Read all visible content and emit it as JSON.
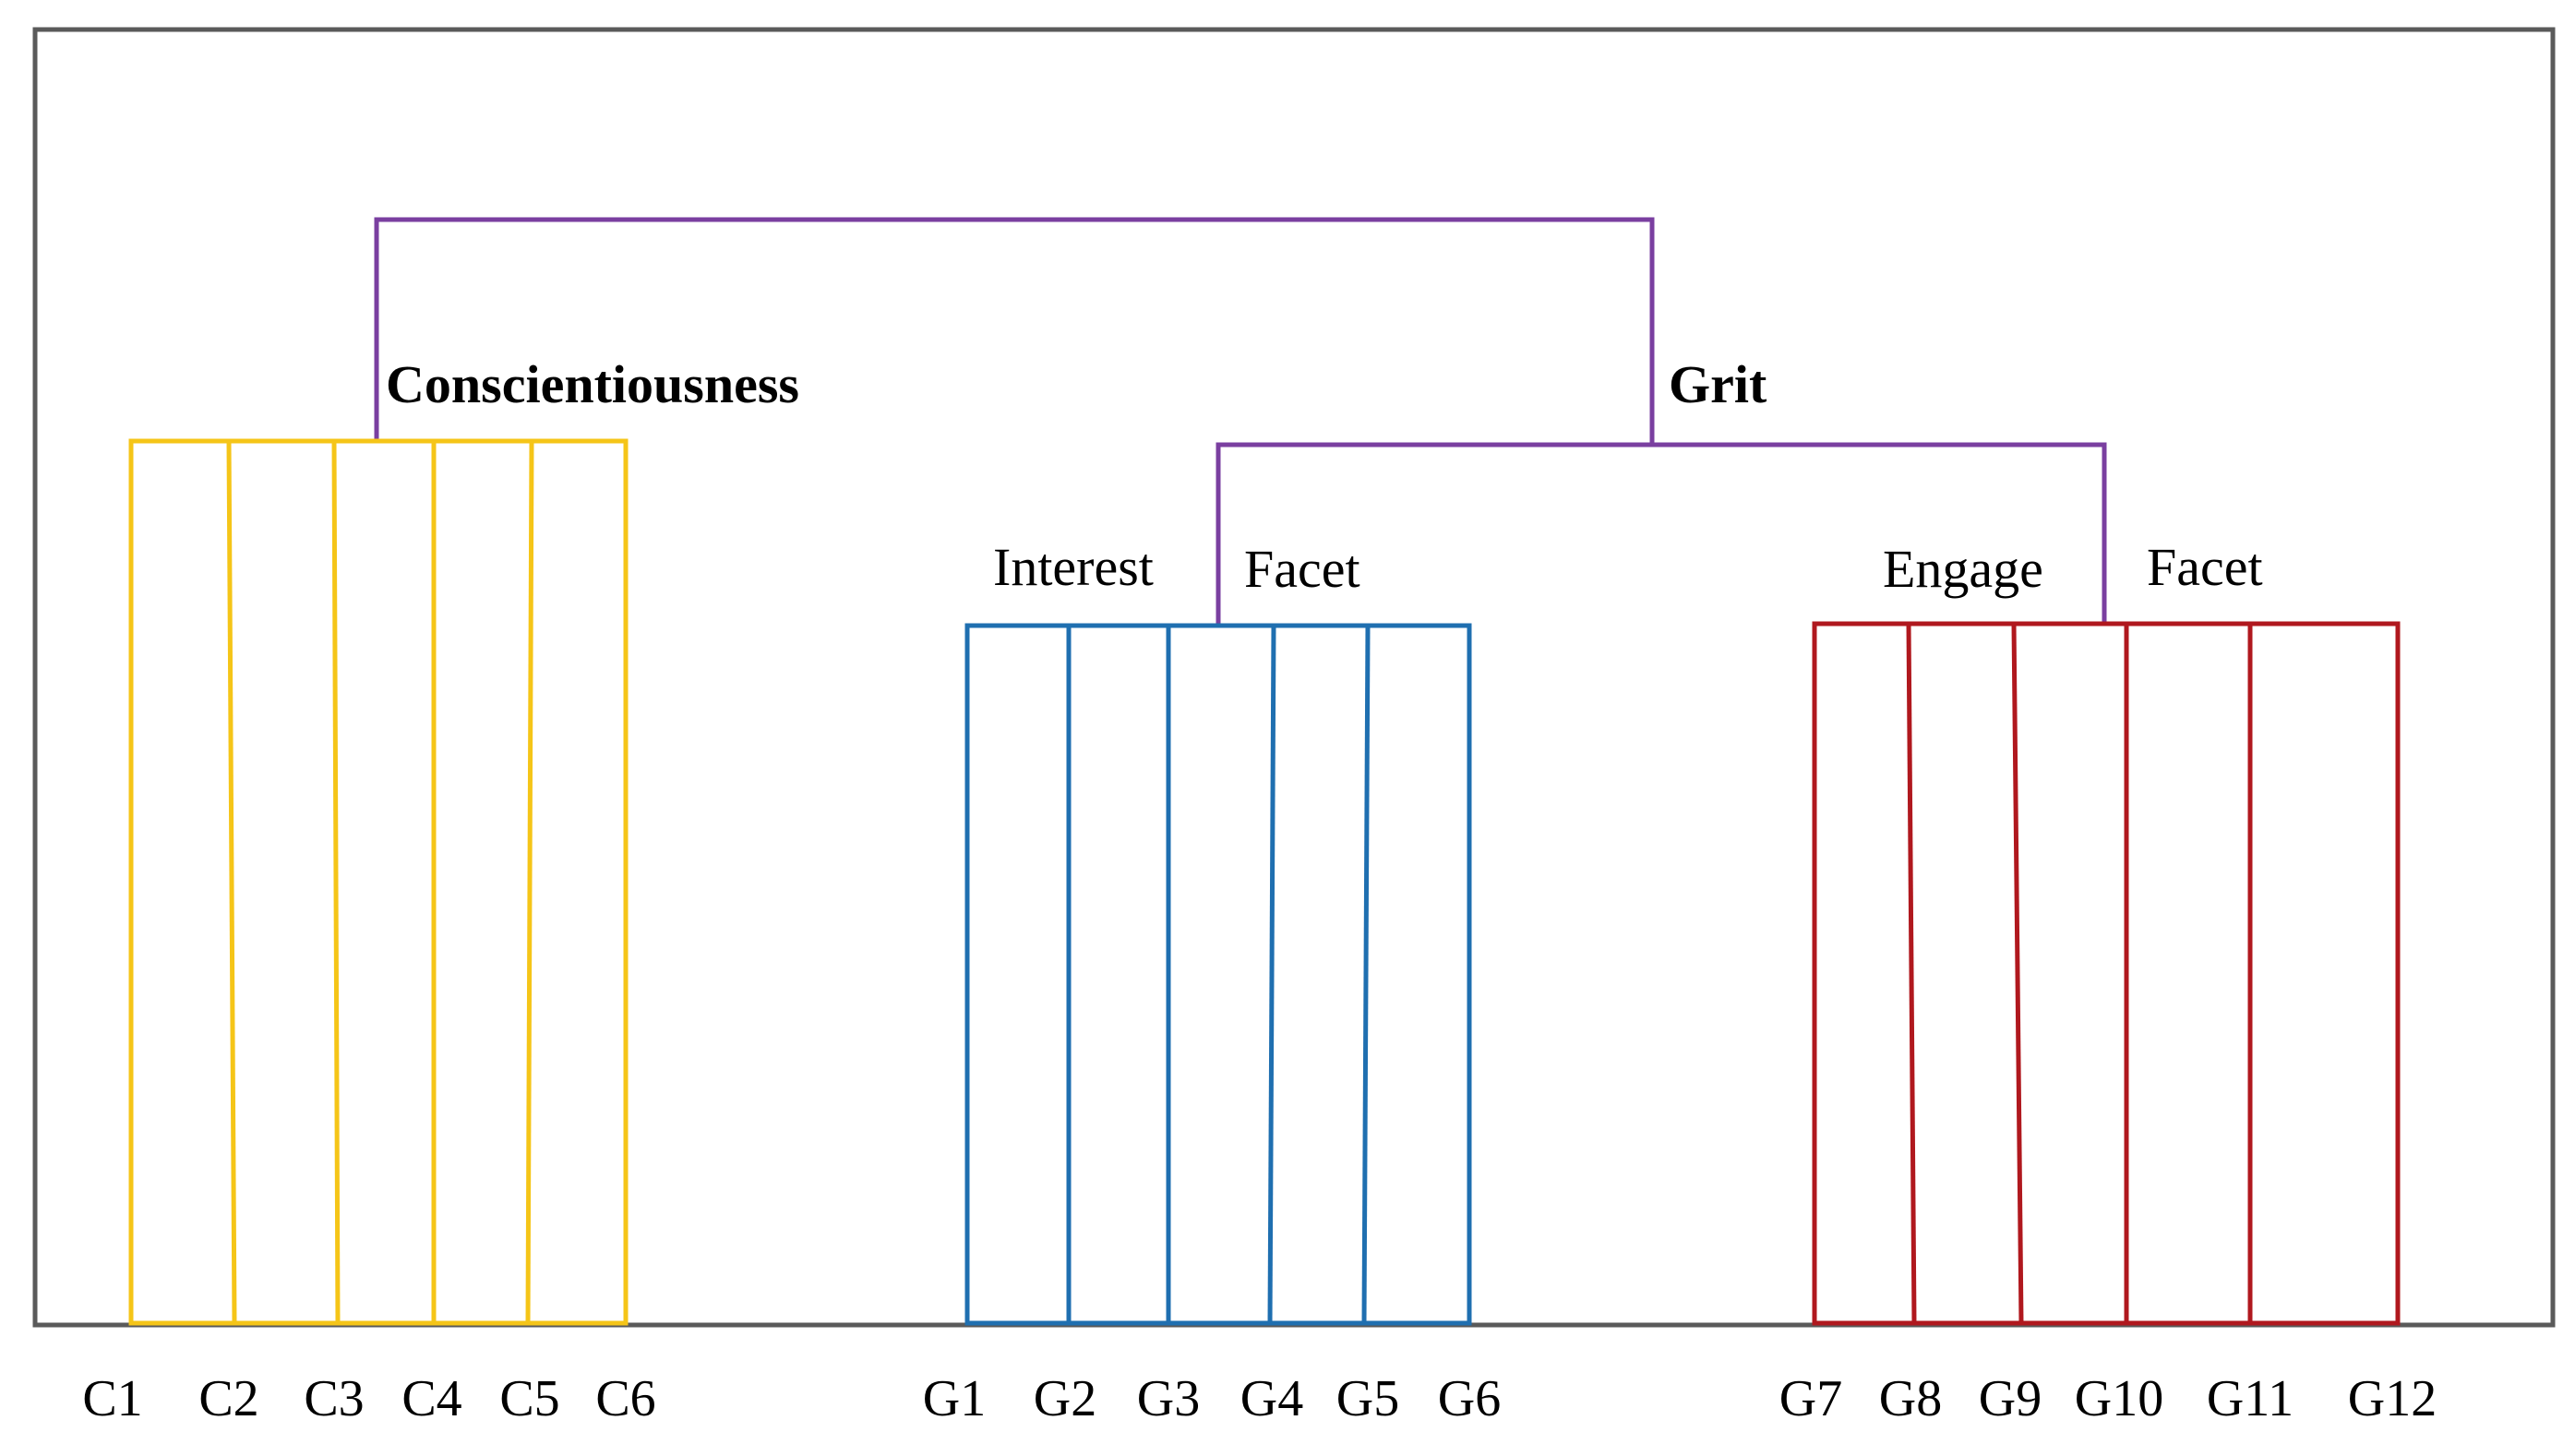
{
  "labels": {
    "conscientiousness": "Conscientiousness",
    "grit": "Grit",
    "interest": "Interest",
    "interest_facet": "Facet",
    "engage": "Engage",
    "engage_facet": "Facet"
  },
  "items": {
    "c": [
      "C1",
      "C2",
      "C3",
      "C4",
      "C5",
      "C6"
    ],
    "g_interest": [
      "G1",
      "G2",
      "G3",
      "G4",
      "G5",
      "G6"
    ],
    "g_engage": [
      "G7",
      "G8",
      "G9",
      "G10",
      "G11",
      "G12"
    ]
  },
  "colors": {
    "frame": "#5a5a5a",
    "top_link": "#7a3fa0",
    "conscientiousness": "#f5c518",
    "interest": "#1f6fb0",
    "engage": "#b0181e"
  }
}
